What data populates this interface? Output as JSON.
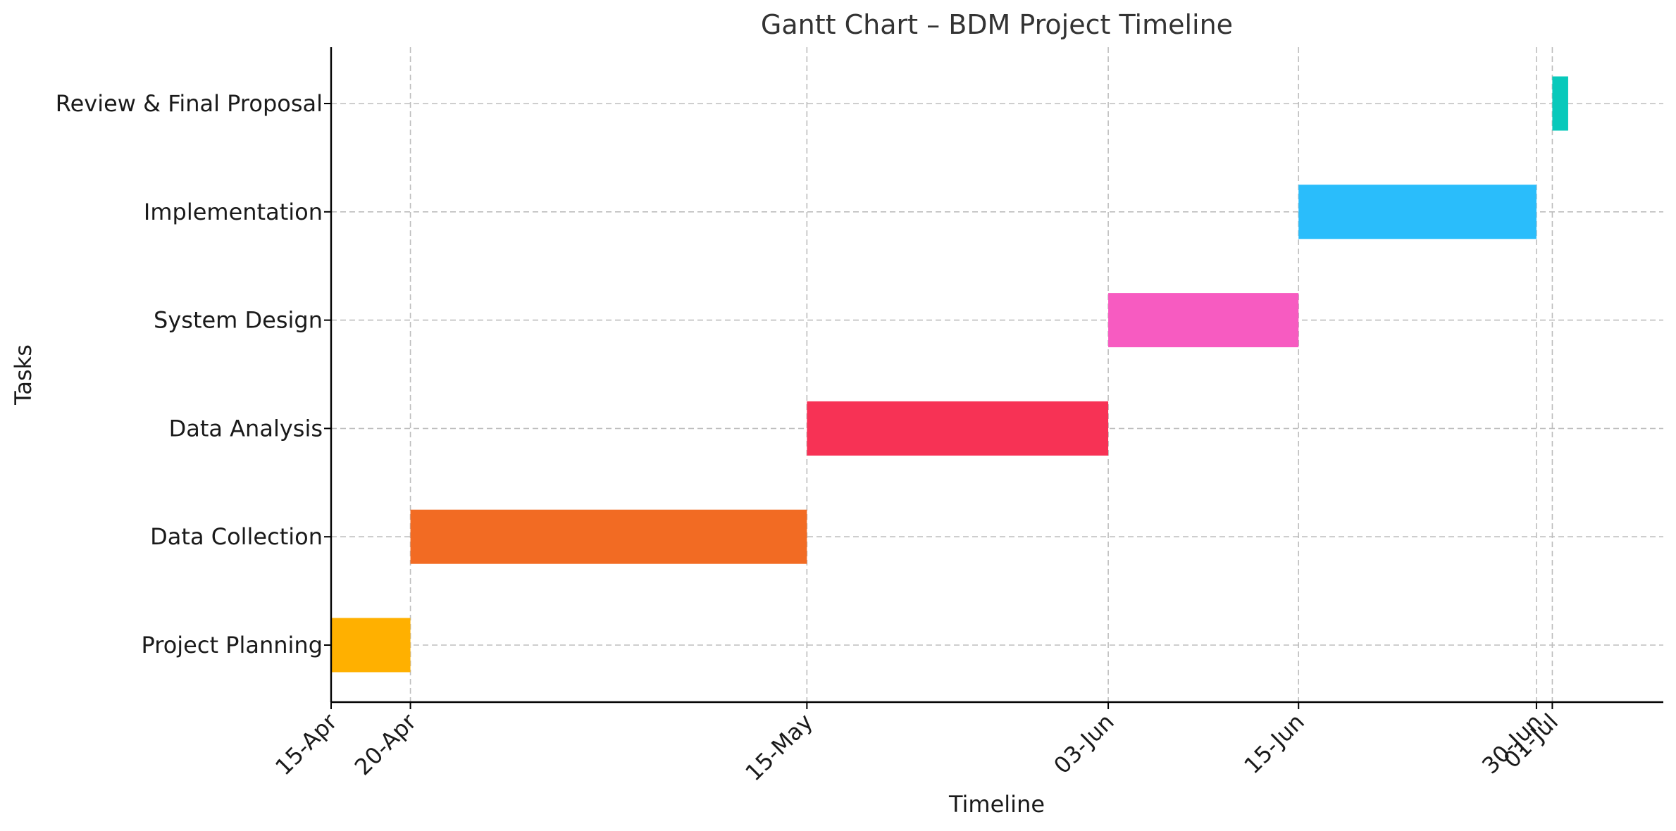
{
  "chart_data": {
    "type": "bar",
    "orientation": "horizontal",
    "subtype": "gantt",
    "title": "Gantt Chart – BDM Project Timeline",
    "xlabel": "Timeline",
    "ylabel": "Tasks",
    "tasks": [
      {
        "name": "Project Planning",
        "start": "2024-04-15",
        "end": "2024-04-20",
        "color": "#FFB000"
      },
      {
        "name": "Data Collection",
        "start": "2024-04-20",
        "end": "2024-05-15",
        "color": "#F26B23"
      },
      {
        "name": "Data Analysis",
        "start": "2024-05-15",
        "end": "2024-06-03",
        "color": "#F73255"
      },
      {
        "name": "System Design",
        "start": "2024-06-03",
        "end": "2024-06-15",
        "color": "#F75BC1"
      },
      {
        "name": "Implementation",
        "start": "2024-06-15",
        "end": "2024-06-30",
        "color": "#2ABDFB"
      },
      {
        "name": "Review & Final Proposal",
        "start": "2024-07-01",
        "end": "2024-07-02",
        "color": "#08C9BB"
      }
    ],
    "x_ticks": [
      {
        "date": "2024-04-15",
        "label": "15-Apr"
      },
      {
        "date": "2024-04-20",
        "label": "20-Apr"
      },
      {
        "date": "2024-05-15",
        "label": "15-May"
      },
      {
        "date": "2024-06-03",
        "label": "03-Jun"
      },
      {
        "date": "2024-06-15",
        "label": "15-Jun"
      },
      {
        "date": "2024-06-30",
        "label": "30-Jun"
      },
      {
        "date": "2024-07-01",
        "label": "01-Jul"
      }
    ],
    "xlim": [
      "2024-04-15",
      "2024-07-08"
    ],
    "grid": true
  }
}
